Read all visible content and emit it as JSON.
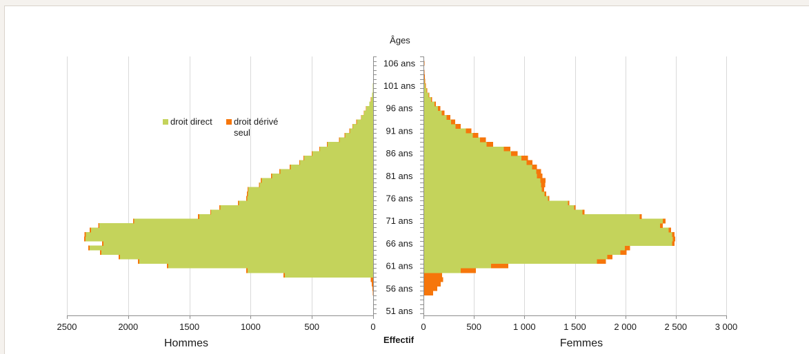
{
  "chart_data": {
    "type": "bar",
    "orientation": "horizontal",
    "stacked": true,
    "title": "Âges",
    "xlabel": "Effectif",
    "grid": true,
    "legend_position": "top-left",
    "ylim": [
      50,
      107.5
    ],
    "y_ticks": [
      106,
      101,
      96,
      91,
      86,
      81,
      76,
      71,
      66,
      61,
      56,
      51
    ],
    "y_tick_labels": [
      "106 ans",
      "101 ans",
      "96 ans",
      "91 ans",
      "86 ans",
      "81 ans",
      "76 ans",
      "71 ans",
      "66 ans",
      "61 ans",
      "56 ans",
      "51 ans"
    ],
    "panels": [
      {
        "label": "Hommes",
        "xlim": [
          0,
          2500
        ],
        "tick_values": [
          2500,
          2000,
          1500,
          1000,
          500,
          0
        ],
        "tick_labels": [
          "2500",
          "2000",
          "1500",
          "1000",
          "500",
          "0"
        ]
      },
      {
        "label": "Femmes",
        "xlim": [
          0,
          3000
        ],
        "tick_values": [
          0,
          500,
          1000,
          1500,
          2000,
          2500,
          3000
        ],
        "tick_labels": [
          "0",
          "500",
          "1 000",
          "1 500",
          "2 000",
          "2 500",
          "3 000"
        ]
      }
    ],
    "categories": [
      55,
      56,
      57,
      58,
      59,
      60,
      61,
      62,
      63,
      64,
      65,
      66,
      67,
      68,
      69,
      70,
      71,
      72,
      73,
      74,
      75,
      76,
      77,
      78,
      79,
      80,
      81,
      82,
      83,
      84,
      85,
      86,
      87,
      88,
      89,
      90,
      91,
      92,
      93,
      94,
      95,
      96,
      97,
      98,
      99,
      100,
      101,
      102,
      103,
      104,
      105,
      106,
      107
    ],
    "series": [
      {
        "name": "droit direct",
        "color": "#c4d35b",
        "hommes": [
          0,
          0,
          0,
          0,
          722,
          1026,
          1673,
          1910,
          2067,
          2218,
          2313,
          2202,
          2348,
          2345,
          2303,
          2235,
          1950,
          1420,
          1322,
          1247,
          1096,
          1028,
          1022,
          1018,
          925,
          910,
          825,
          758,
          674,
          596,
          562,
          495,
          434,
          372,
          272,
          228,
          188,
          165,
          132,
          95,
          72,
          55,
          30,
          18,
          8,
          4,
          2,
          1,
          0,
          0,
          0,
          0,
          0
        ],
        "femmes": [
          0,
          0,
          2,
          4,
          8,
          370,
          670,
          1720,
          1822,
          1950,
          1995,
          2463,
          2470,
          2462,
          2428,
          2345,
          2372,
          2142,
          1575,
          1492,
          1430,
          1232,
          1198,
          1172,
          1165,
          1158,
          1125,
          1118,
          1075,
          1020,
          970,
          868,
          795,
          625,
          560,
          488,
          420,
          318,
          272,
          228,
          180,
          145,
          110,
          75,
          50,
          30,
          18,
          10,
          6,
          4,
          2,
          2,
          0
        ]
      },
      {
        "name": "droit dérivé seul",
        "color": "#f6760b",
        "hommes": [
          2,
          5,
          10,
          20,
          10,
          10,
          10,
          10,
          12,
          12,
          12,
          12,
          12,
          12,
          10,
          10,
          10,
          10,
          8,
          8,
          8,
          8,
          8,
          8,
          8,
          8,
          8,
          8,
          8,
          7,
          7,
          7,
          6,
          6,
          6,
          5,
          5,
          5,
          5,
          4,
          3,
          3,
          2,
          2,
          1,
          0,
          0,
          0,
          0,
          0,
          0,
          0,
          0
        ],
        "femmes": [
          95,
          135,
          170,
          190,
          175,
          150,
          170,
          88,
          50,
          62,
          52,
          25,
          25,
          25,
          25,
          25,
          25,
          22,
          20,
          15,
          15,
          15,
          18,
          25,
          40,
          50,
          55,
          48,
          50,
          60,
          65,
          65,
          65,
          65,
          60,
          55,
          55,
          50,
          42,
          38,
          30,
          22,
          14,
          10,
          8,
          8,
          6,
          6,
          6,
          6,
          6,
          8,
          5
        ]
      }
    ]
  }
}
